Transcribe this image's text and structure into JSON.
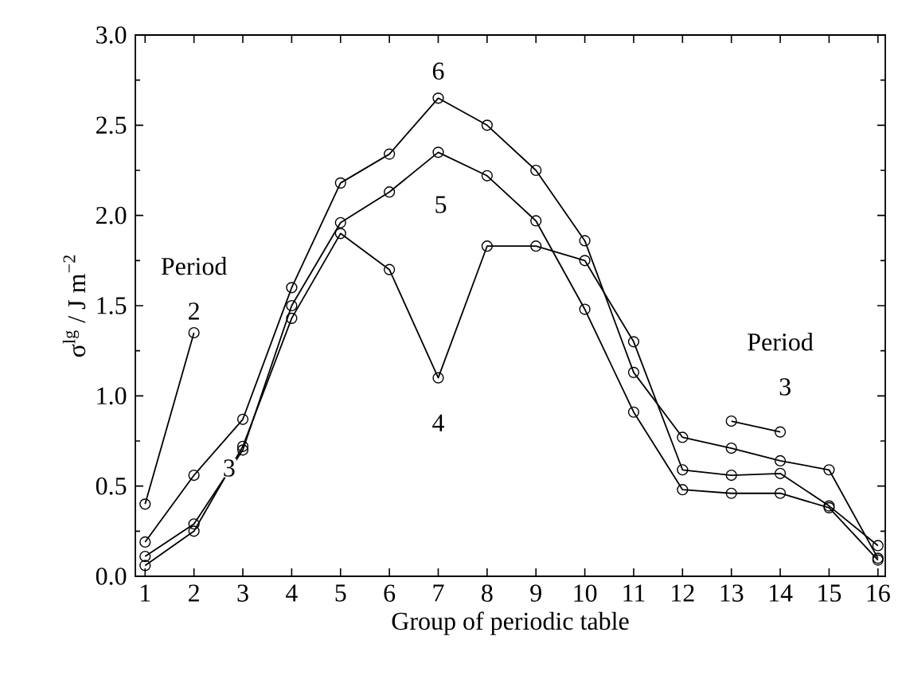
{
  "chart_data": {
    "type": "line",
    "xlabel": "Group of periodic table",
    "ylabel": "σ$^{lg}$ / J m$^{−2}$",
    "xlim": [
      0.8,
      16.15
    ],
    "xticks": [
      1,
      2,
      3,
      4,
      5,
      6,
      7,
      8,
      9,
      10,
      11,
      12,
      13,
      14,
      15,
      16
    ],
    "ylim": [
      0,
      3
    ],
    "yticks": [
      {
        "value": 0,
        "label": "0.0"
      },
      {
        "value": 0.5,
        "label": "0.5"
      },
      {
        "value": 1,
        "label": "1.0"
      },
      {
        "value": 1.5,
        "label": "1.5"
      },
      {
        "value": 2,
        "label": "2.0"
      },
      {
        "value": 2.5,
        "label": "2.5"
      },
      {
        "value": 3,
        "label": "3.0"
      }
    ],
    "marker": "circle",
    "series": [
      {
        "name": "2",
        "color": "#000000",
        "x": [
          1,
          2
        ],
        "values": [
          0.4,
          1.35
        ]
      },
      {
        "name": "3",
        "color": "#000000",
        "x": [
          13,
          14
        ],
        "values": [
          0.86,
          0.8
        ]
      },
      {
        "name": "4",
        "color": "#000000",
        "x": [
          1,
          2,
          3,
          4,
          5,
          6,
          7,
          8,
          9,
          10,
          11,
          12,
          13,
          14,
          15,
          16
        ],
        "values": [
          0.06,
          0.25,
          0.72,
          1.43,
          1.9,
          1.7,
          1.1,
          1.83,
          1.83,
          1.75,
          1.3,
          0.59,
          0.56,
          0.57,
          0.39,
          0.17
        ]
      },
      {
        "name": "5",
        "color": "#000000",
        "x": [
          1,
          2,
          3,
          4,
          5,
          6,
          7,
          8,
          9,
          10,
          11,
          12,
          13,
          14,
          15,
          16
        ],
        "values": [
          0.11,
          0.29,
          0.7,
          1.5,
          1.96,
          2.13,
          2.35,
          2.22,
          1.97,
          1.48,
          0.91,
          0.48,
          0.46,
          0.46,
          0.38,
          0.09
        ]
      },
      {
        "name": "6",
        "color": "#000000",
        "x": [
          1,
          2,
          3,
          4,
          5,
          6,
          7,
          8,
          9,
          10,
          11,
          12,
          13,
          14,
          15,
          16
        ],
        "values": [
          0.19,
          0.56,
          0.87,
          1.6,
          2.18,
          2.34,
          2.65,
          2.5,
          2.25,
          1.86,
          1.13,
          0.77,
          0.71,
          0.64,
          0.59,
          0.1
        ]
      }
    ],
    "annotations": [
      "Period",
      "Period",
      "3"
    ]
  }
}
